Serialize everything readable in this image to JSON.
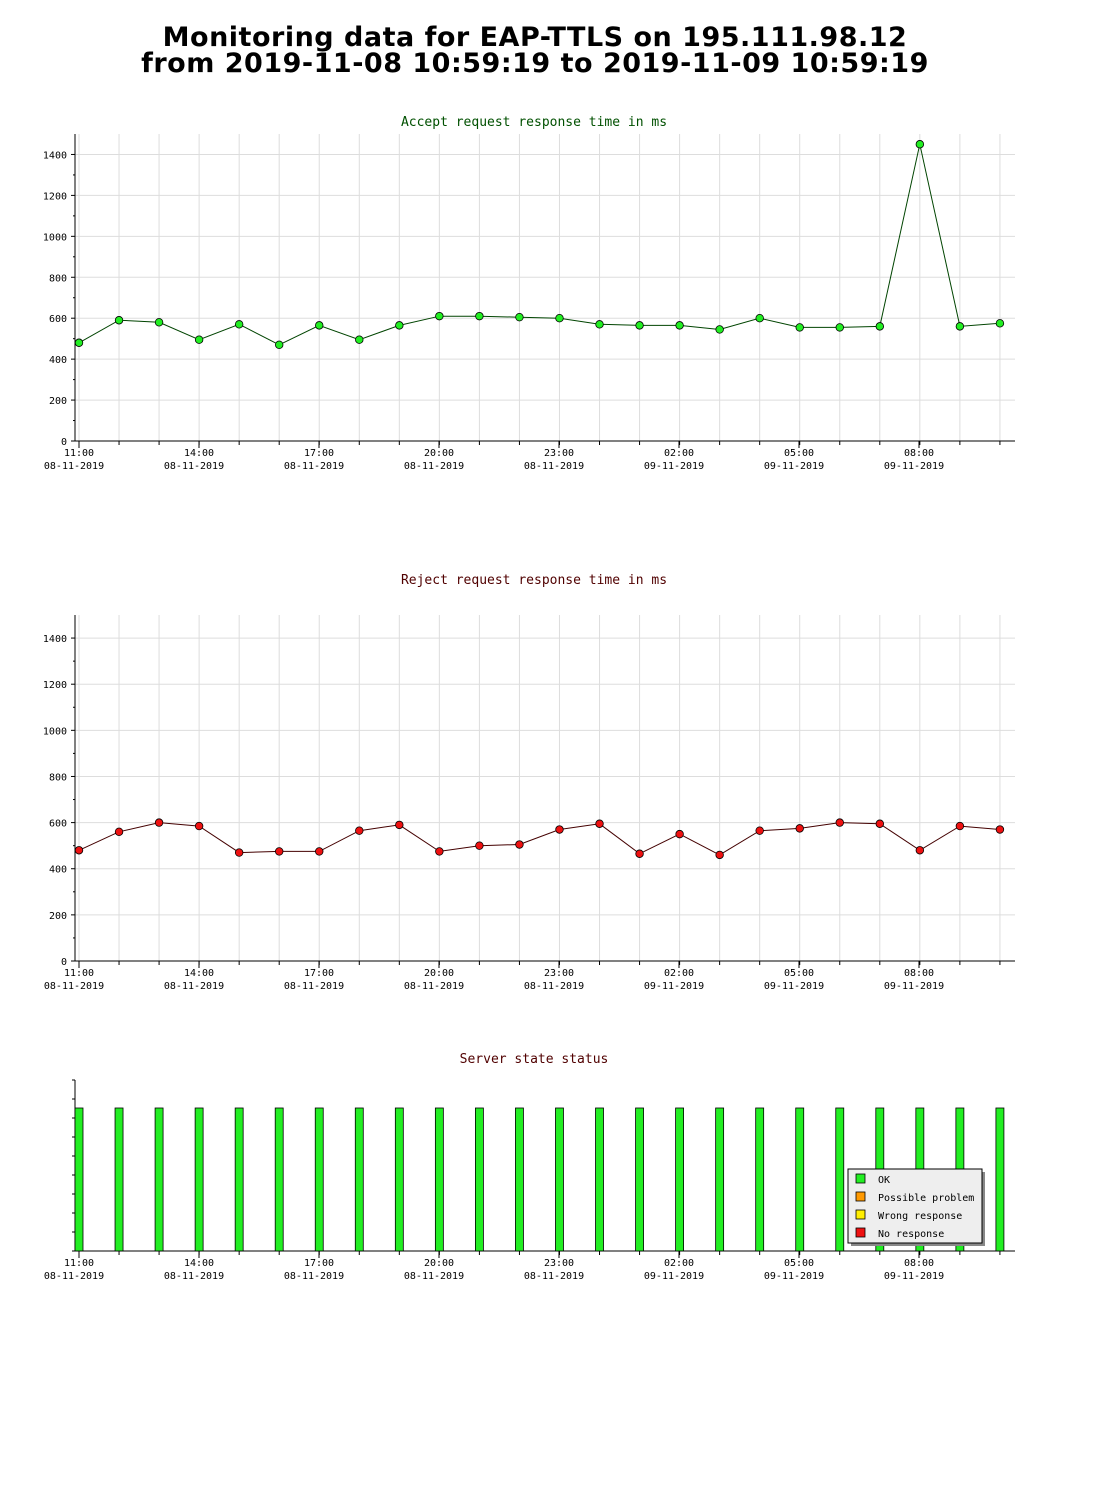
{
  "title": {
    "line1": "Monitoring data for EAP-TTLS on 195.111.98.12",
    "line2": "from 2019-11-08 10:59:19 to 2019-11-09 10:59:19"
  },
  "colors": {
    "accept_title": "#005000",
    "reject_title": "#500000",
    "status_title": "#500000",
    "accept_line": "#004400",
    "accept_marker": "#22ee22",
    "reject_line": "#440000",
    "reject_marker": "#ee1111",
    "grid": "#dddddd"
  },
  "x_axis": {
    "ticks": [
      {
        "time": "11:00",
        "date": "08-11-2019"
      },
      {
        "time": "14:00",
        "date": "08-11-2019"
      },
      {
        "time": "17:00",
        "date": "08-11-2019"
      },
      {
        "time": "20:00",
        "date": "08-11-2019"
      },
      {
        "time": "23:00",
        "date": "08-11-2019"
      },
      {
        "time": "02:00",
        "date": "09-11-2019"
      },
      {
        "time": "05:00",
        "date": "09-11-2019"
      },
      {
        "time": "08:00",
        "date": "09-11-2019"
      }
    ]
  },
  "chart_data": [
    {
      "type": "line",
      "title": "Accept request response time in ms",
      "x": [
        "11:00",
        "12:00",
        "13:00",
        "14:00",
        "15:00",
        "16:00",
        "17:00",
        "18:00",
        "19:00",
        "20:00",
        "21:00",
        "22:00",
        "23:00",
        "00:00",
        "01:00",
        "02:00",
        "03:00",
        "04:00",
        "05:00",
        "06:00",
        "07:00",
        "08:00",
        "09:00",
        "10:00"
      ],
      "values": [
        480,
        590,
        580,
        495,
        570,
        470,
        565,
        495,
        565,
        610,
        610,
        605,
        600,
        570,
        565,
        565,
        545,
        600,
        555,
        555,
        560,
        1450,
        560,
        575
      ],
      "ylim": [
        0,
        1500
      ],
      "yticks": [
        0,
        200,
        400,
        600,
        800,
        1000,
        1200,
        1400
      ],
      "grid": true
    },
    {
      "type": "line",
      "title": "Reject request response time in ms",
      "x": [
        "11:00",
        "12:00",
        "13:00",
        "14:00",
        "15:00",
        "16:00",
        "17:00",
        "18:00",
        "19:00",
        "20:00",
        "21:00",
        "22:00",
        "23:00",
        "00:00",
        "01:00",
        "02:00",
        "03:00",
        "04:00",
        "05:00",
        "06:00",
        "07:00",
        "08:00",
        "09:00",
        "10:00"
      ],
      "values": [
        480,
        560,
        600,
        585,
        470,
        475,
        475,
        565,
        590,
        475,
        500,
        505,
        570,
        595,
        465,
        550,
        460,
        565,
        575,
        600,
        595,
        480,
        585,
        570
      ],
      "ylim": [
        0,
        1500
      ],
      "yticks": [
        0,
        200,
        400,
        600,
        800,
        1000,
        1200,
        1400
      ],
      "grid": true
    },
    {
      "type": "bar",
      "title": "Server state status",
      "x": [
        "11:00",
        "12:00",
        "13:00",
        "14:00",
        "15:00",
        "16:00",
        "17:00",
        "18:00",
        "19:00",
        "20:00",
        "21:00",
        "22:00",
        "23:00",
        "00:00",
        "01:00",
        "02:00",
        "03:00",
        "04:00",
        "05:00",
        "06:00",
        "07:00",
        "08:00",
        "09:00",
        "10:00"
      ],
      "status": [
        "OK",
        "OK",
        "OK",
        "OK",
        "OK",
        "OK",
        "OK",
        "OK",
        "OK",
        "OK",
        "OK",
        "OK",
        "OK",
        "OK",
        "OK",
        "OK",
        "OK",
        "OK",
        "OK",
        "OK",
        "OK",
        "OK",
        "OK",
        "OK"
      ],
      "legend": [
        {
          "label": "OK",
          "color": "#22ee22"
        },
        {
          "label": "Possible problem",
          "color": "#ff9900"
        },
        {
          "label": "Wrong response",
          "color": "#ffee00"
        },
        {
          "label": "No response",
          "color": "#ee1111"
        }
      ],
      "legend_position": "bottom-right"
    }
  ]
}
